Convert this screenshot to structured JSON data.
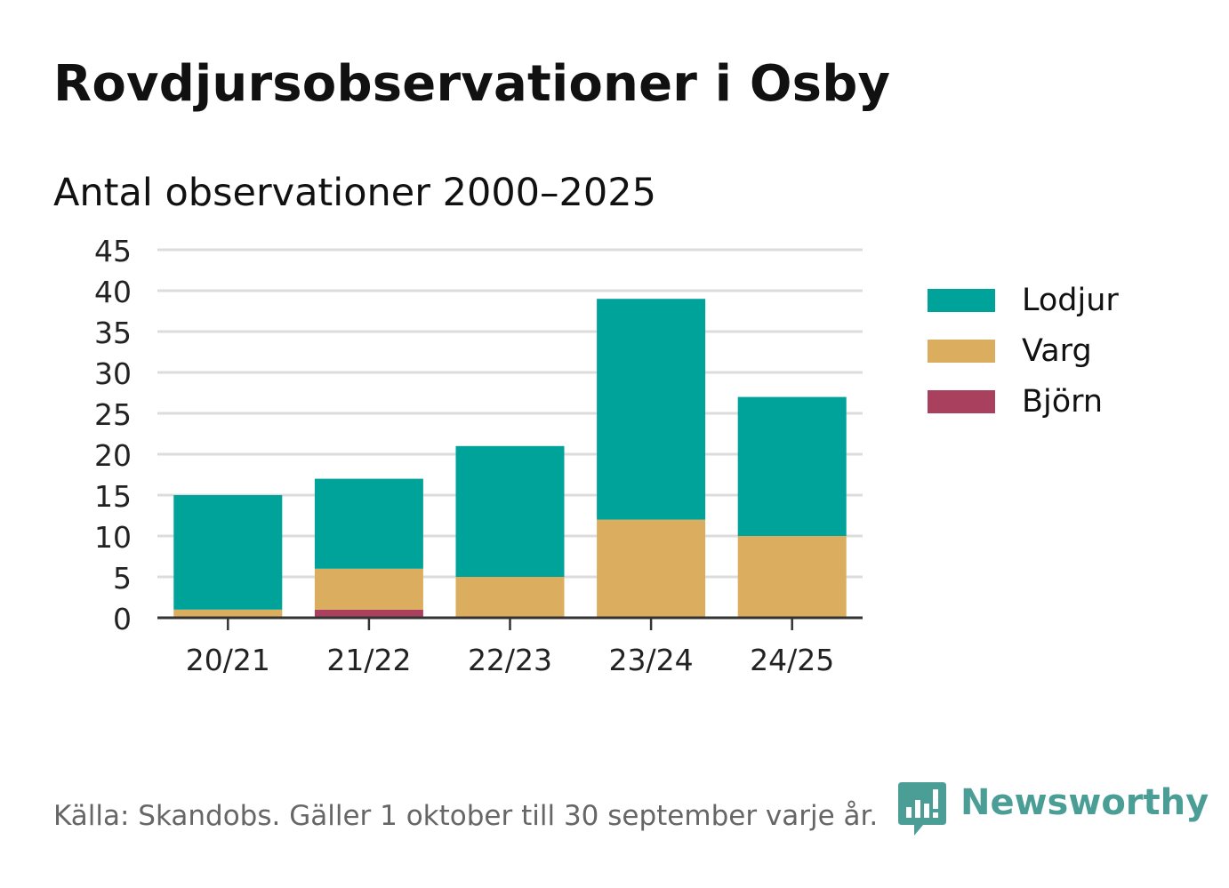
{
  "title": "Rovdjursobservationer i Osby",
  "subtitle": "Antal observationer 2000–2025",
  "footer": "Källa: Skandobs. Gäller 1 oktober till 30 september varje år.",
  "brand": {
    "name": "Newsworthy",
    "icon": "bar-chart-speech-bubble-icon",
    "color": "#4a9e96"
  },
  "chart_data": {
    "type": "bar",
    "stacked": true,
    "categories": [
      "20/21",
      "21/22",
      "22/23",
      "23/24",
      "24/25"
    ],
    "series": [
      {
        "name": "Björn",
        "color": "#a8405e",
        "values": [
          0,
          1,
          0,
          0,
          0
        ]
      },
      {
        "name": "Varg",
        "color": "#dbad5e",
        "values": [
          1,
          5,
          5,
          12,
          10
        ]
      },
      {
        "name": "Lodjur",
        "color": "#00a39a",
        "values": [
          14,
          11,
          16,
          27,
          17
        ]
      }
    ],
    "legend_order": [
      "Lodjur",
      "Varg",
      "Björn"
    ],
    "ylim": [
      0,
      45
    ],
    "yticks": [
      0,
      5,
      10,
      15,
      20,
      25,
      30,
      35,
      40,
      45
    ],
    "grid": true,
    "legend_position": "right",
    "xlabel": "",
    "ylabel": ""
  }
}
